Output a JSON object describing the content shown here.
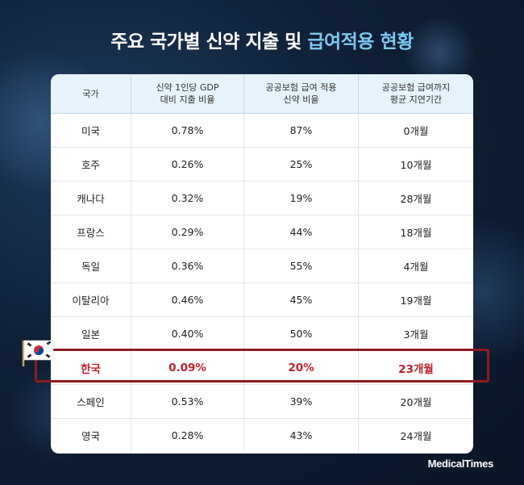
{
  "title": {
    "main": "주요 국가별 신약 지출 및 ",
    "highlight": "급여적용 현황"
  },
  "table": {
    "headers": [
      "국가",
      "신약 1인당 GDP\n대비 지출 비율",
      "공공보험 급여 적용\n신약 비율",
      "공공보험 급여까지\n평균 지연기간"
    ],
    "rows": [
      [
        "미국",
        "0.78%",
        "87%",
        "0개월"
      ],
      [
        "호주",
        "0.26%",
        "25%",
        "10개월"
      ],
      [
        "캐나다",
        "0.32%",
        "19%",
        "28개월"
      ],
      [
        "프랑스",
        "0.29%",
        "44%",
        "18개월"
      ],
      [
        "독일",
        "0.36%",
        "55%",
        "4개월"
      ],
      [
        "이탈리아",
        "0.46%",
        "45%",
        "19개월"
      ],
      [
        "일본",
        "0.40%",
        "50%",
        "3개월"
      ],
      [
        "한국",
        "0.09%",
        "20%",
        "23개월"
      ],
      [
        "스페인",
        "0.53%",
        "39%",
        "20개월"
      ],
      [
        "영국",
        "0.28%",
        "43%",
        "24개월"
      ]
    ],
    "highlighted_row": 7
  },
  "brand": "MedicalTimes",
  "colors": {
    "highlight_text": "#c0202a",
    "highlight_border": "#8e1b22",
    "title_accent": "#7cc9f0",
    "header_bg": "#e6f3fb"
  },
  "icons": {
    "flag": "south-korea-flag-icon"
  }
}
